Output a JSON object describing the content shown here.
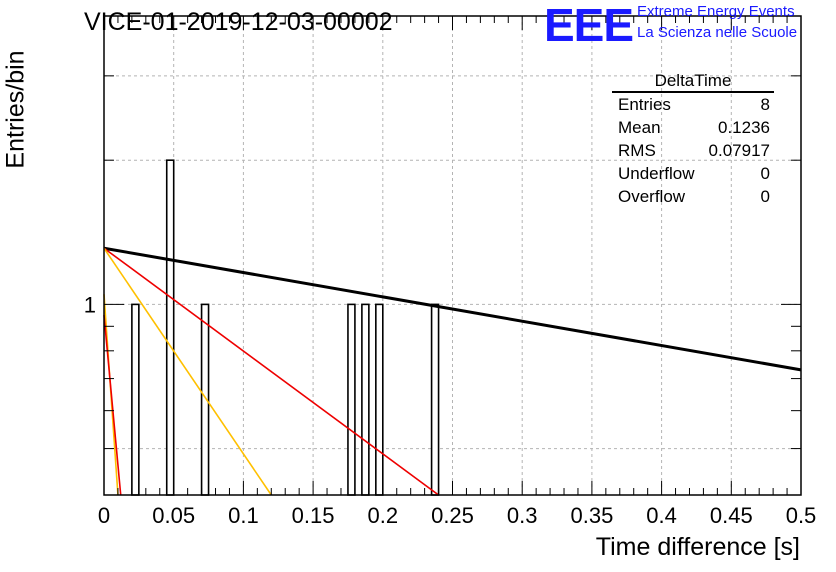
{
  "title": "VICE-01-2019-12-03-00002",
  "logo": {
    "mark": "EEE",
    "line1": "Extreme Energy Events",
    "line2": "La Scienza nelle Scuole",
    "color": "#1a1aff"
  },
  "stats_box": {
    "title": "DeltaTime",
    "rows": [
      {
        "label": "Entries",
        "value": "8"
      },
      {
        "label": "Mean",
        "value": "0.1236"
      },
      {
        "label": "RMS",
        "value": "0.07917"
      },
      {
        "label": "Underflow",
        "value": "0"
      },
      {
        "label": "Overflow",
        "value": "0"
      }
    ]
  },
  "chart_data": {
    "type": "bar",
    "xlabel": "Time difference [s]",
    "ylabel": "Entries/bin",
    "xlim": [
      0,
      0.5
    ],
    "ylim": [
      0.4,
      4
    ],
    "y_scale": "log",
    "grid": true,
    "x_tick_labels": [
      "0",
      "0.05",
      "0.1",
      "0.15",
      "0.2",
      "0.25",
      "0.3",
      "0.35",
      "0.4",
      "0.45",
      "0.5"
    ],
    "y_tick_labels": [
      {
        "value": 1,
        "label": "1"
      }
    ],
    "bin_width": 0.005,
    "bars": [
      {
        "x": 0.02,
        "value": 1
      },
      {
        "x": 0.045,
        "value": 2
      },
      {
        "x": 0.07,
        "value": 1
      },
      {
        "x": 0.175,
        "value": 1
      },
      {
        "x": 0.185,
        "value": 1
      },
      {
        "x": 0.195,
        "value": 1
      },
      {
        "x": 0.235,
        "value": 1
      }
    ],
    "fit_lines": [
      {
        "color": "#000000",
        "x": [
          0,
          0.5
        ],
        "y": [
          1.31,
          0.73
        ]
      },
      {
        "color": "#ee0000",
        "x": [
          0,
          0.24
        ],
        "y": [
          1.31,
          0.4
        ]
      },
      {
        "color": "#ffc000",
        "x": [
          0,
          0.12
        ],
        "y": [
          1.31,
          0.4
        ]
      },
      {
        "color": "#ffc000",
        "x": [
          0,
          0.01
        ],
        "y": [
          1.05,
          0.4
        ]
      },
      {
        "color": "#ee0000",
        "x": [
          0,
          0.012
        ],
        "y": [
          0.95,
          0.4
        ]
      }
    ]
  }
}
